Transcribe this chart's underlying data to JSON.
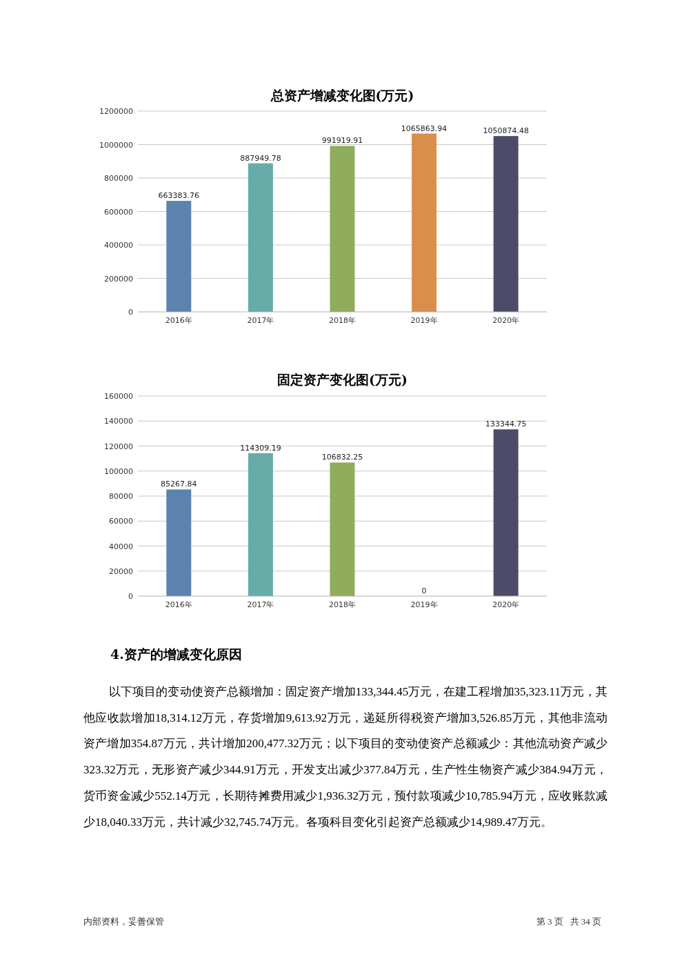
{
  "chart_data": [
    {
      "type": "bar",
      "title": "总资产增减变化图(万元)",
      "categories": [
        "2016年",
        "2017年",
        "2018年",
        "2019年",
        "2020年"
      ],
      "values": [
        663383.76,
        887949.78,
        991919.91,
        1065863.94,
        1050874.48
      ],
      "colors": [
        "#5b83ae",
        "#68aca9",
        "#8fad5c",
        "#d98f4b",
        "#4c4b6a"
      ],
      "ylim": [
        0,
        1200000
      ],
      "yticks": [
        0,
        200000,
        400000,
        600000,
        800000,
        1000000,
        1200000
      ],
      "grid": "y",
      "data_labels": true
    },
    {
      "type": "bar",
      "title": "固定资产变化图(万元)",
      "categories": [
        "2016年",
        "2017年",
        "2018年",
        "2019年",
        "2020年"
      ],
      "values": [
        85267.84,
        114309.19,
        106832.25,
        0,
        133344.75
      ],
      "colors": [
        "#5b83ae",
        "#68aca9",
        "#8fad5c",
        "#d98f4b",
        "#4c4b6a"
      ],
      "ylim": [
        0,
        160000
      ],
      "yticks": [
        0,
        20000,
        40000,
        60000,
        80000,
        100000,
        120000,
        140000,
        160000
      ],
      "grid": "y",
      "data_labels": true
    },
    {
      "type": "other",
      "title": "4.资产的增减变化原因",
      "annotations": [
        "以下项目的变动使资产总额增加：固定资产增加133,344.45万元，在建工程增加35,323.11万元，其他应收款增加18,314.12万元，存货增加9,613.92万元，递延所得税资产增加3,526.85万元，其他非流动资产增加354.87万元，共计增加200,477.32万元；以下项目的变动使资产总额减少：其他流动资产减少323.32万元，无形资产减少344.91万元，开发支出减少377.84万元，生产性生物资产减少384.94万元，货币资金减少552.14万元，长期待摊费用减少1,936.32万元，预付款项减少10,785.94万元，应收账款减少18,040.33万元，共计减少32,745.74万元。各项科目变化引起资产总额减少14,989.47万元。",
        "内部资料，妥善保管",
        "第 3 页   共 34 页"
      ]
    }
  ]
}
